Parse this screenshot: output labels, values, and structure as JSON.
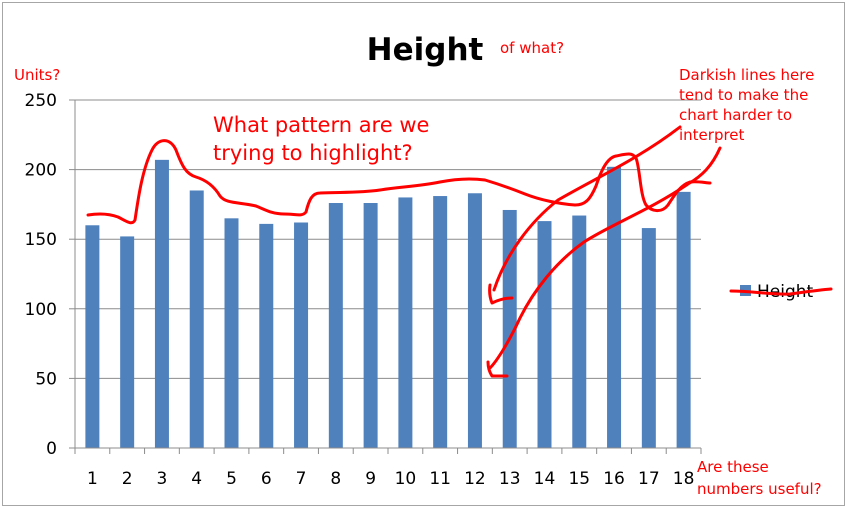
{
  "chart_data": {
    "type": "bar",
    "title": "Height",
    "categories": [
      "1",
      "2",
      "3",
      "4",
      "5",
      "6",
      "7",
      "8",
      "9",
      "10",
      "11",
      "12",
      "13",
      "14",
      "15",
      "16",
      "17",
      "18"
    ],
    "series": [
      {
        "name": "Height",
        "values": [
          160,
          152,
          207,
          185,
          165,
          161,
          162,
          176,
          176,
          180,
          181,
          183,
          171,
          163,
          167,
          202,
          158,
          184
        ]
      }
    ],
    "ylim": [
      0,
      250
    ],
    "yticks": [
      "0",
      "50",
      "100",
      "150",
      "200",
      "250"
    ],
    "xlabel": "",
    "ylabel": "",
    "grid": true,
    "legend_position": "right",
    "colors": {
      "bar": "#4f81bd",
      "grid": "#8c8c8c",
      "annotation": "#ff0000"
    }
  },
  "annotations": {
    "units": "Units?",
    "of_what": "of what?",
    "pattern_line1": "What pattern are we",
    "pattern_line2": "trying to highlight?",
    "dark_line1": "Darkish lines here",
    "dark_line2": "tend to make the",
    "dark_line3": "chart harder to",
    "dark_line4": "interpret",
    "numbers_line1": "Are these",
    "numbers_line2": "numbers useful?"
  }
}
